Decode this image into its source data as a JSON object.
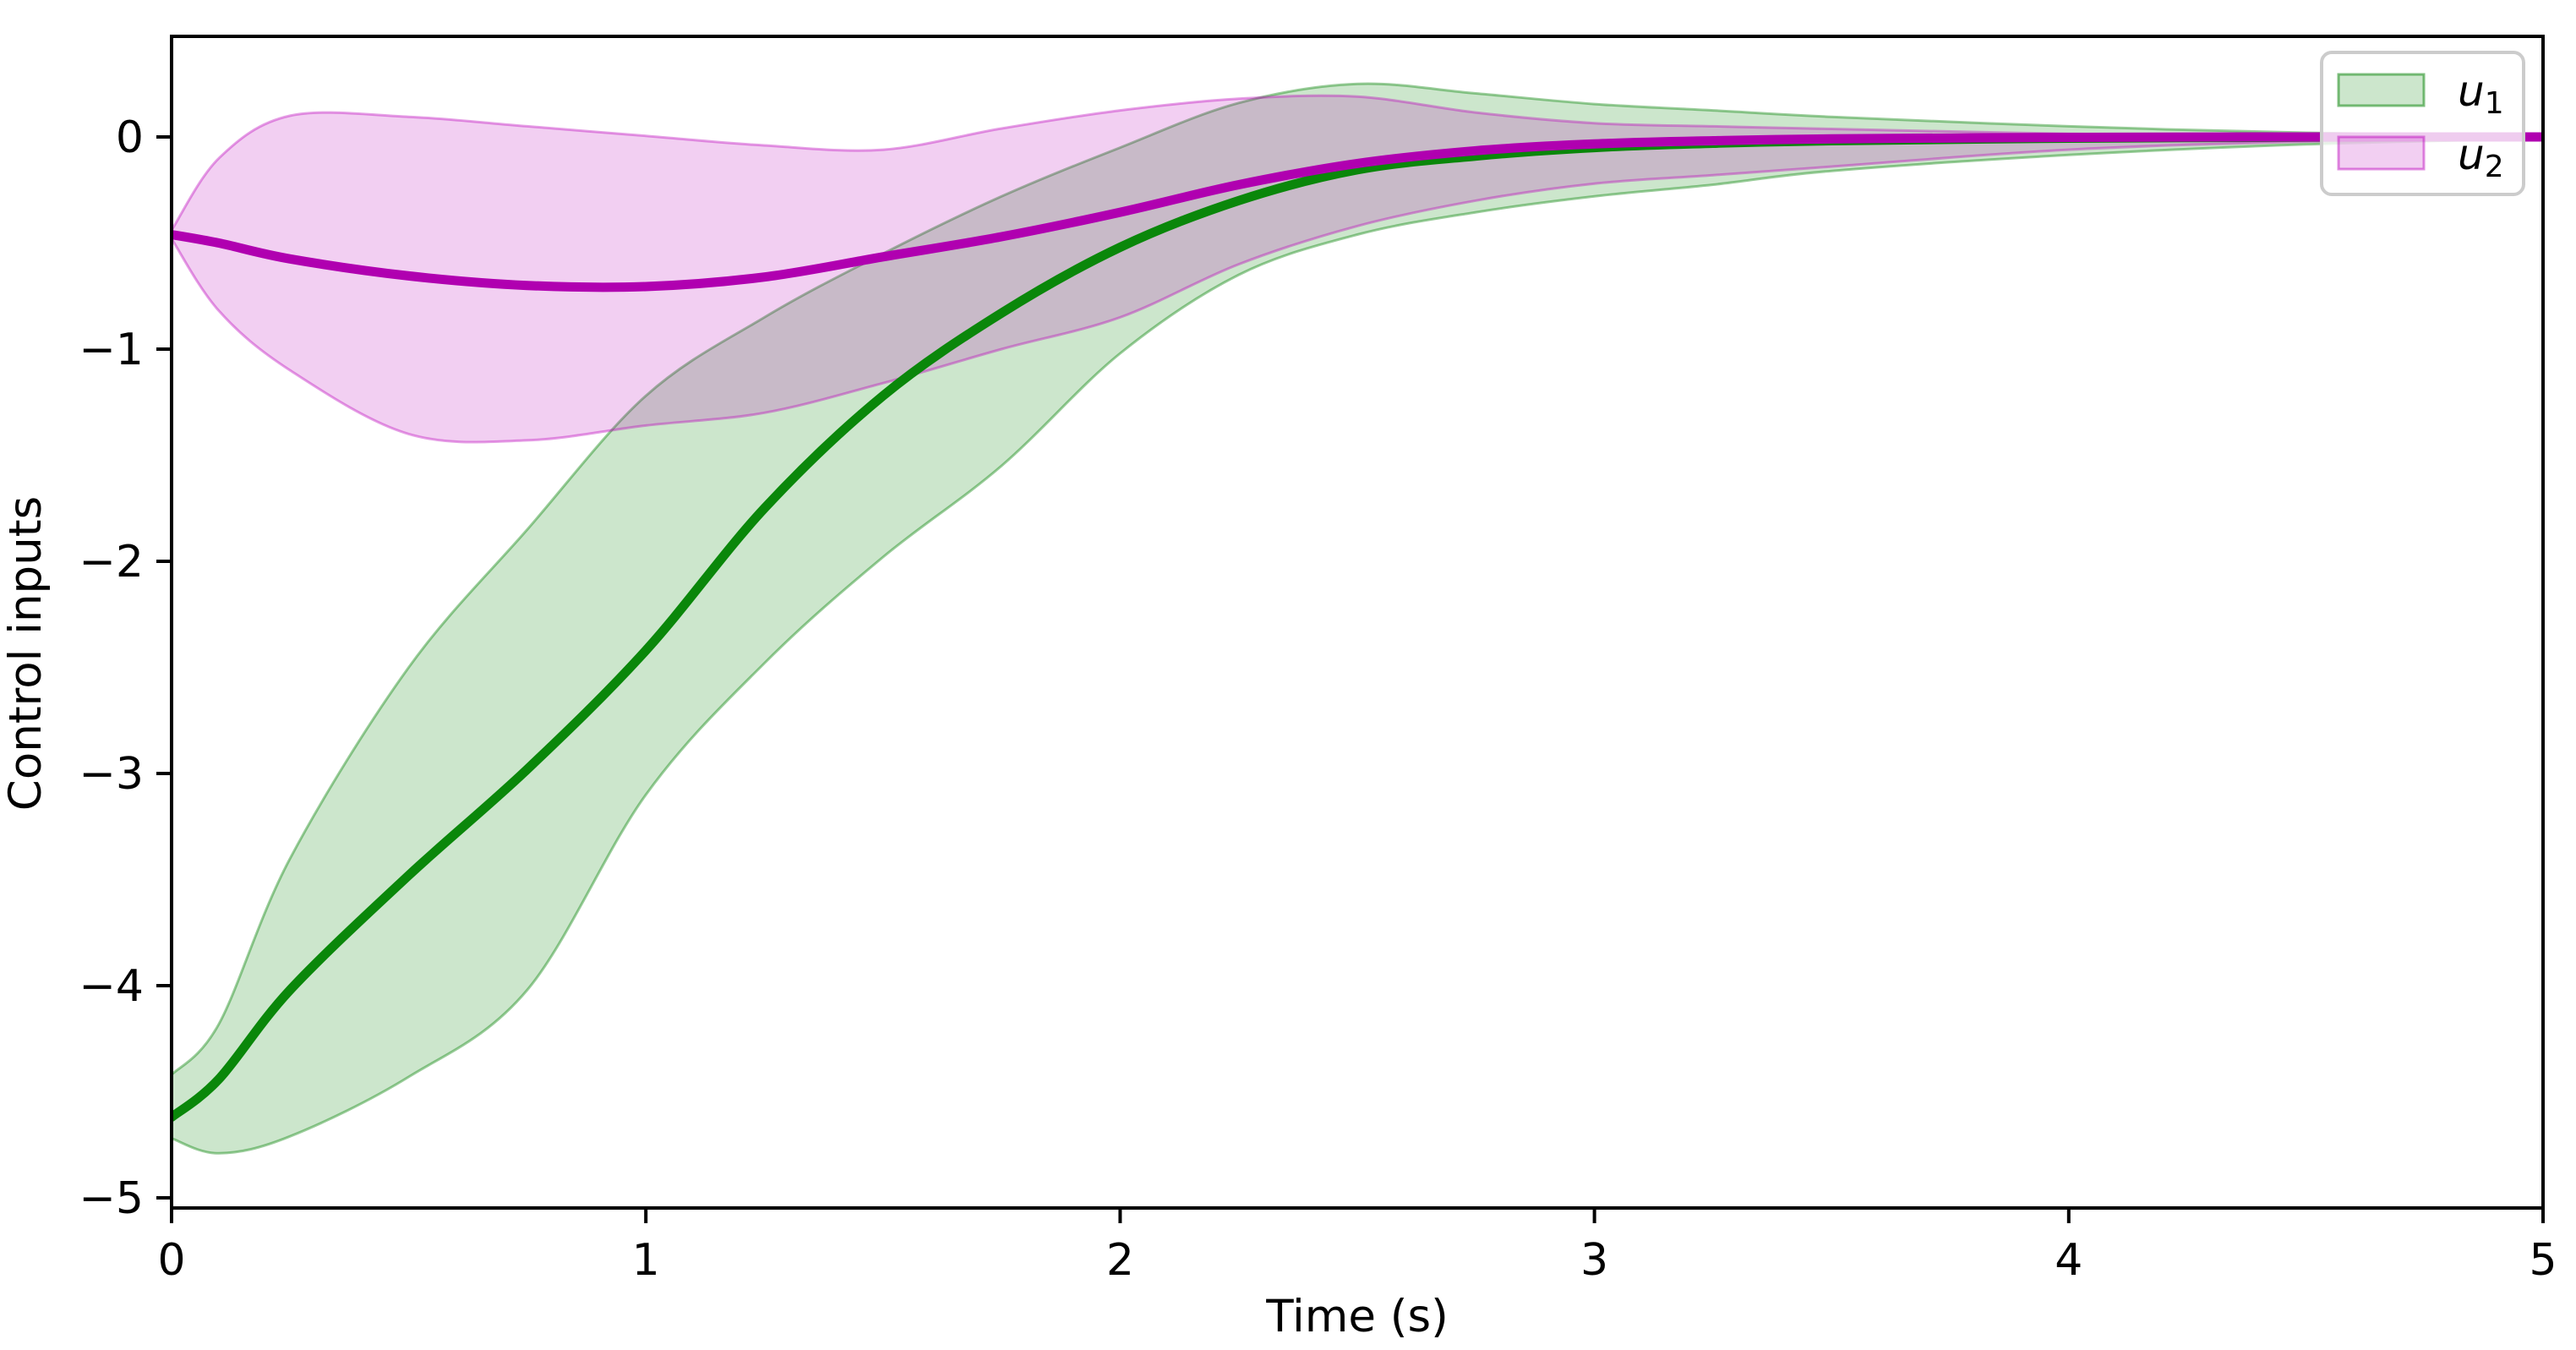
{
  "figure": {
    "xlabel": "Time (s)",
    "ylabel": "Control inputs",
    "background_color": "#ffffff",
    "axis_color": "#000000"
  },
  "legend": {
    "position": "upper right",
    "box_fill": "rgba(255,255,255,0.8)",
    "box_edge": "#cccccc",
    "entries": [
      {
        "var": "u",
        "sub": "1",
        "patch_fill": "rgba(0,128,0,0.2)",
        "patch_edge": "rgba(0,128,0,0.5)"
      },
      {
        "var": "u",
        "sub": "2",
        "patch_fill": "rgba(186,0,186,0.19)",
        "patch_edge": "rgba(186,0,186,0.45)"
      }
    ]
  },
  "chart_data": {
    "type": "line",
    "title": "",
    "xlabel": "Time (s)",
    "ylabel": "Control inputs",
    "xlim": [
      0,
      5
    ],
    "ylim": [
      -5.04,
      0.47
    ],
    "x_ticks": [
      0,
      1,
      2,
      3,
      4,
      5
    ],
    "x_tick_labels": [
      "0",
      "1",
      "2",
      "3",
      "4",
      "5"
    ],
    "y_ticks": [
      0,
      -1,
      -2,
      -3,
      -4,
      -5
    ],
    "y_tick_labels": [
      "0",
      "−1",
      "−2",
      "−3",
      "−4",
      "−5"
    ],
    "grid": false,
    "legend_position": "upper right",
    "x": [
      0,
      0.1,
      0.25,
      0.5,
      0.75,
      1.0,
      1.25,
      1.5,
      1.75,
      2.0,
      2.25,
      2.5,
      2.75,
      3.0,
      3.25,
      3.5,
      4.0,
      4.5,
      5.0
    ],
    "series": [
      {
        "name": "u1",
        "line_color": "#0a870a",
        "band_fill": "rgba(0,128,0,0.2)",
        "band_edge": "rgba(0,128,0,0.4)",
        "mean": [
          -4.62,
          -4.44,
          -4.02,
          -3.48,
          -2.98,
          -2.42,
          -1.75,
          -1.22,
          -0.83,
          -0.52,
          -0.3,
          -0.155,
          -0.09,
          -0.05,
          -0.03,
          -0.018,
          -0.006,
          -0.001,
          0
        ],
        "upper": [
          -4.42,
          -4.18,
          -3.4,
          -2.5,
          -1.85,
          -1.22,
          -0.85,
          -0.55,
          -0.28,
          -0.05,
          0.16,
          0.25,
          0.205,
          0.155,
          0.125,
          0.095,
          0.05,
          0.02,
          0.004
        ],
        "lower": [
          -4.72,
          -4.79,
          -4.71,
          -4.43,
          -4.02,
          -3.1,
          -2.48,
          -1.98,
          -1.55,
          -1.02,
          -0.65,
          -0.46,
          -0.355,
          -0.28,
          -0.225,
          -0.16,
          -0.085,
          -0.035,
          -0.008
        ]
      },
      {
        "name": "u2",
        "line_color": "#b000b0",
        "band_fill": "rgba(186,0,186,0.19)",
        "band_edge": "rgba(186,0,186,0.38)",
        "mean": [
          -0.46,
          -0.5,
          -0.575,
          -0.655,
          -0.7,
          -0.705,
          -0.66,
          -0.565,
          -0.47,
          -0.355,
          -0.225,
          -0.125,
          -0.065,
          -0.033,
          -0.018,
          -0.009,
          -0.002,
          0,
          0
        ],
        "upper": [
          -0.44,
          -0.1,
          0.1,
          0.095,
          0.05,
          0.005,
          -0.04,
          -0.06,
          0.04,
          0.125,
          0.18,
          0.19,
          0.115,
          0.065,
          0.05,
          0.038,
          0.015,
          0.004,
          0
        ],
        "lower": [
          -0.48,
          -0.82,
          -1.1,
          -1.4,
          -1.43,
          -1.36,
          -1.3,
          -1.16,
          -1.0,
          -0.85,
          -0.6,
          -0.42,
          -0.3,
          -0.22,
          -0.18,
          -0.14,
          -0.06,
          -0.022,
          -0.004
        ]
      }
    ]
  }
}
